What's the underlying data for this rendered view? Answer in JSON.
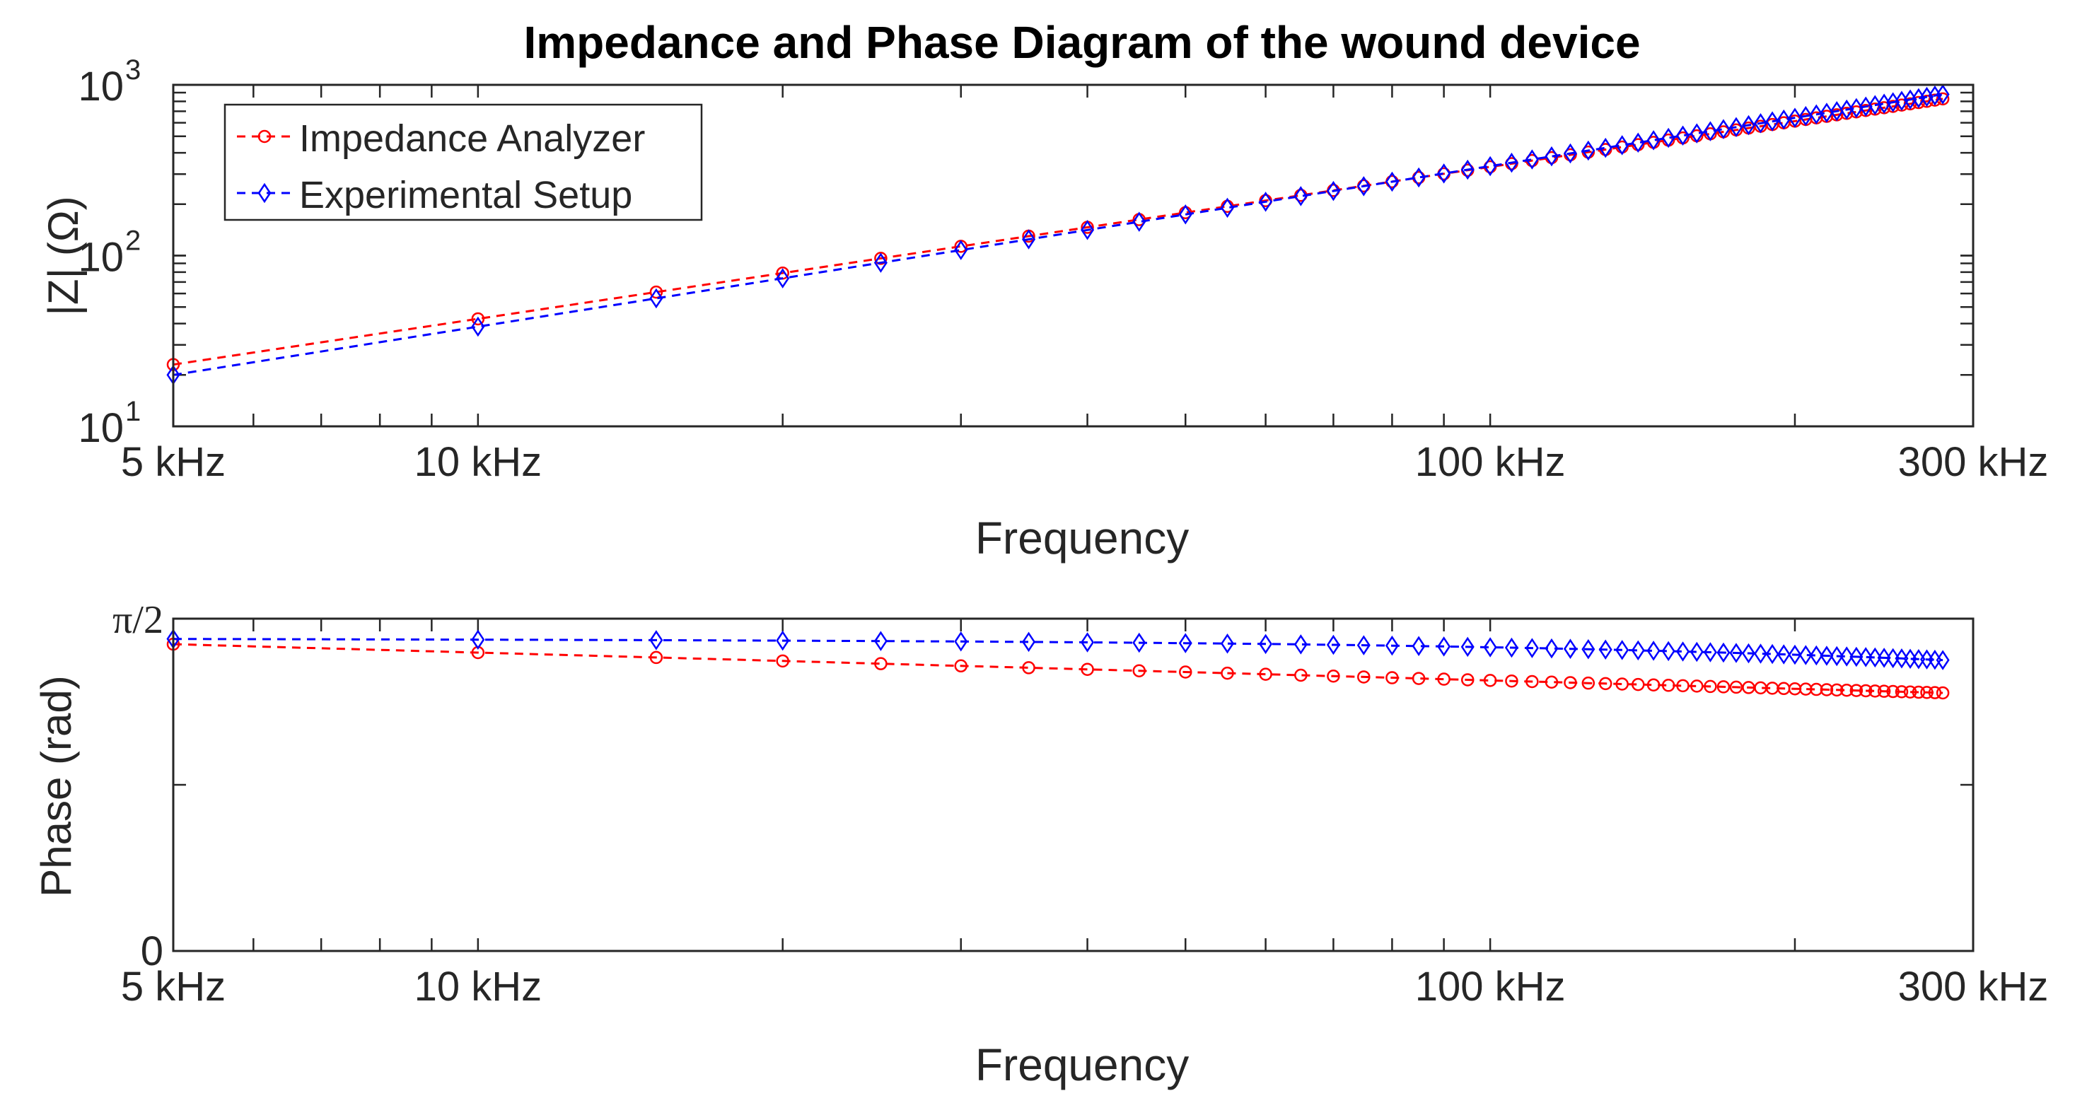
{
  "figure_title": "Impedance and Phase Diagram of the wound device",
  "colors": {
    "analyzer": "#ff0000",
    "setup": "#0000ff",
    "axis": "#262626"
  },
  "chart_data": [
    {
      "type": "line",
      "title": "Impedance and Phase Diagram of the wound device",
      "xlabel": "Frequency",
      "ylabel": "|Z| (Ω)",
      "xscale": "log",
      "yscale": "log",
      "xlim": [
        5,
        300
      ],
      "ylim": [
        10,
        1000
      ],
      "x_unit": "kHz",
      "x_ticks": [
        {
          "value": 5,
          "label": "5 kHz"
        },
        {
          "value": 10,
          "label": "10 kHz"
        },
        {
          "value": 100,
          "label": "100 kHz"
        },
        {
          "value": 300,
          "label": "300 kHz"
        }
      ],
      "y_ticks": [
        {
          "value": 10,
          "base": "10",
          "exp": "1"
        },
        {
          "value": 100,
          "base": "10",
          "exp": "2"
        },
        {
          "value": 1000,
          "base": "10",
          "exp": "3"
        }
      ],
      "legend": {
        "position": "top-left",
        "entries": [
          "Impedance Analyzer",
          "Experimental Setup"
        ]
      },
      "series": [
        {
          "name": "Impedance Analyzer",
          "color": "#ff0000",
          "marker": "circle",
          "linestyle": "dashed",
          "model": {
            "kind": "power",
            "a": 23,
            "x0": 5,
            "b": 0.89
          }
        },
        {
          "name": "Experimental Setup",
          "color": "#0000ff",
          "marker": "diamond",
          "linestyle": "dashed",
          "model": {
            "kind": "power",
            "a": 20,
            "x0": 5,
            "b": 0.94
          }
        }
      ]
    },
    {
      "type": "line",
      "xlabel": "Frequency",
      "ylabel": "Phase (rad)",
      "xscale": "log",
      "yscale": "linear",
      "xlim": [
        5,
        300
      ],
      "ylim": [
        0,
        1.5708
      ],
      "x_unit": "kHz",
      "x_ticks": [
        {
          "value": 5,
          "label": "5 kHz"
        },
        {
          "value": 10,
          "label": "10 kHz"
        },
        {
          "value": 100,
          "label": "100 kHz"
        },
        {
          "value": 300,
          "label": "300 kHz"
        }
      ],
      "y_ticks": [
        {
          "value": 0,
          "label": "0"
        },
        {
          "value": 1.5708,
          "label": "π/2"
        }
      ],
      "y_minor_ticks": [
        0.7854
      ],
      "series": [
        {
          "name": "Impedance Analyzer",
          "color": "#ff0000",
          "marker": "circle",
          "linestyle": "dashed",
          "model": {
            "kind": "logphase",
            "start": 1.45,
            "end": 1.22,
            "x0": 5,
            "x1": 280
          }
        },
        {
          "name": "Experimental Setup",
          "color": "#0000ff",
          "marker": "diamond",
          "linestyle": "dashed",
          "model": {
            "kind": "curve",
            "start": 1.475,
            "mid": 1.455,
            "end": 1.355,
            "x0": 5,
            "x1": 280
          }
        }
      ]
    }
  ],
  "sample_frequencies_khz": [
    5,
    10,
    15,
    20,
    25,
    30,
    35,
    40,
    45,
    50,
    55,
    60,
    65,
    70,
    75,
    80,
    85,
    90,
    95,
    100,
    105,
    110,
    115,
    120,
    125,
    130,
    135,
    140,
    145,
    150,
    155,
    160,
    165,
    170,
    175,
    180,
    185,
    190,
    195,
    200,
    205,
    210,
    215,
    220,
    225,
    230,
    235,
    240,
    245,
    250,
    255,
    260,
    265,
    270,
    275,
    280
  ]
}
